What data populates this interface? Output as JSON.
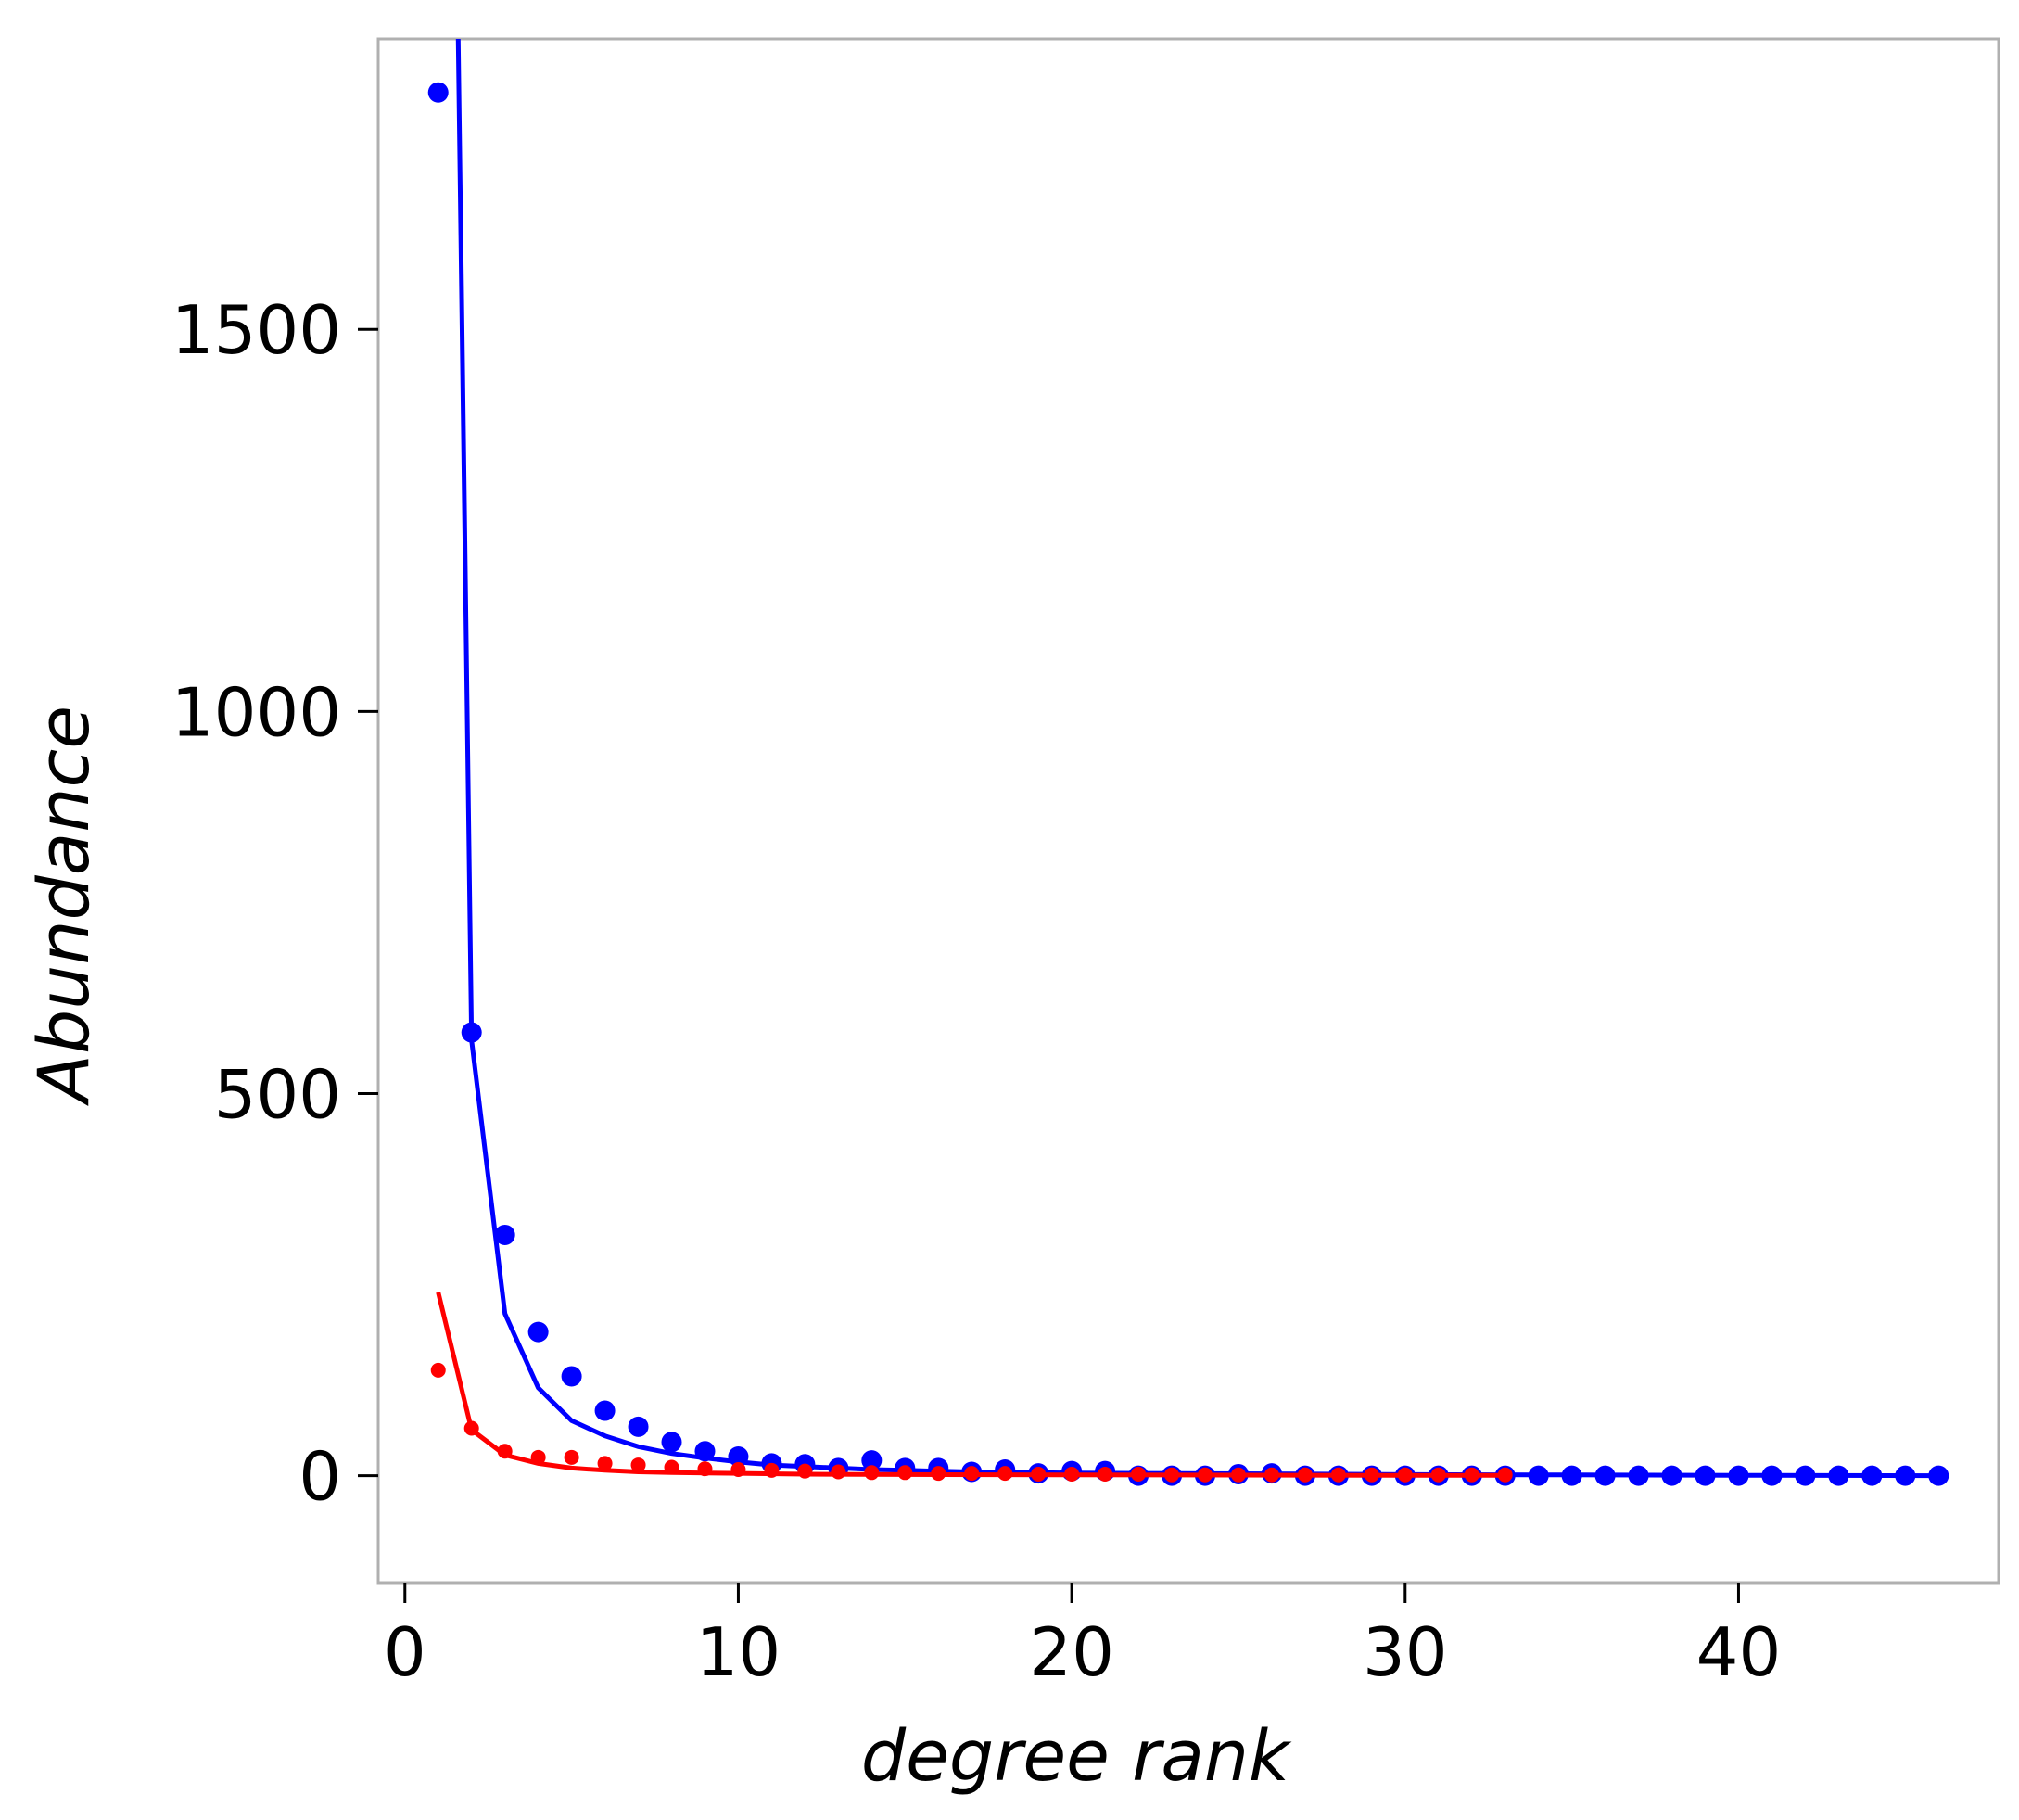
{
  "chart_data": {
    "type": "scatter",
    "title": "",
    "xlabel": "degree rank",
    "ylabel": "Abundance",
    "xlim": [
      -0.8,
      47.8
    ],
    "ylim": [
      -140,
      1880
    ],
    "xticks": [
      0,
      10,
      20,
      30,
      40
    ],
    "yticks": [
      0,
      500,
      1000,
      1500
    ],
    "grid": false,
    "legend": "none",
    "series": [
      {
        "kind": "points",
        "color": "#0000ff",
        "x": [
          1,
          2,
          3,
          4,
          5,
          6,
          7,
          8,
          9,
          10,
          11,
          12,
          13,
          14,
          15,
          16,
          17,
          18,
          19,
          20,
          21,
          22,
          23,
          24,
          25,
          26,
          27,
          28,
          29,
          30,
          31,
          32,
          33,
          34,
          35,
          36,
          37,
          38,
          39,
          40,
          41,
          42,
          43,
          44,
          45,
          46
        ],
        "y": [
          1810,
          580,
          315,
          188,
          130,
          85,
          64,
          44,
          32,
          25,
          16,
          15,
          10,
          20,
          10,
          10,
          5,
          8,
          3,
          6,
          6,
          0,
          0,
          0,
          2,
          3,
          0,
          0,
          0,
          0,
          0,
          0,
          0,
          0,
          0,
          0,
          0,
          0,
          0,
          0,
          0,
          0,
          0,
          0,
          0,
          0
        ]
      },
      {
        "kind": "line",
        "color": "#0000ff",
        "x": [
          1.6,
          2,
          3,
          4,
          5,
          6,
          7,
          8,
          9,
          10,
          11,
          12,
          13,
          14,
          15,
          16,
          17,
          18,
          19,
          20,
          22,
          25,
          30,
          35,
          40,
          46
        ],
        "y": [
          1880,
          570,
          212,
          115,
          72,
          52,
          38,
          29,
          23,
          18,
          14,
          12,
          10,
          8,
          7,
          6,
          5,
          4.5,
          4,
          3.5,
          3,
          2.5,
          1.5,
          1,
          0.5,
          0
        ]
      },
      {
        "kind": "points",
        "color": "#ff0000",
        "x": [
          1,
          2,
          3,
          4,
          5,
          6,
          7,
          8,
          9,
          10,
          11,
          12,
          13,
          14,
          15,
          16,
          17,
          18,
          19,
          20,
          21,
          22,
          23,
          24,
          25,
          26,
          27,
          28,
          29,
          30,
          31,
          32,
          33
        ],
        "y": [
          138,
          62,
          32,
          24,
          24,
          16,
          14,
          11,
          9,
          8,
          7,
          6,
          5,
          4,
          4,
          3,
          3,
          3,
          2,
          2,
          2,
          2,
          1,
          1,
          1,
          1,
          1,
          1,
          1,
          1,
          1,
          1,
          1
        ]
      },
      {
        "kind": "line",
        "color": "#ff0000",
        "x": [
          1,
          2,
          3,
          4,
          5,
          6,
          7,
          8,
          10,
          12,
          15,
          20,
          25,
          30,
          33
        ],
        "y": [
          240,
          60,
          27,
          16,
          10,
          7,
          5,
          4,
          3,
          2,
          1.5,
          1,
          0.7,
          0.5,
          0.4
        ]
      }
    ]
  }
}
